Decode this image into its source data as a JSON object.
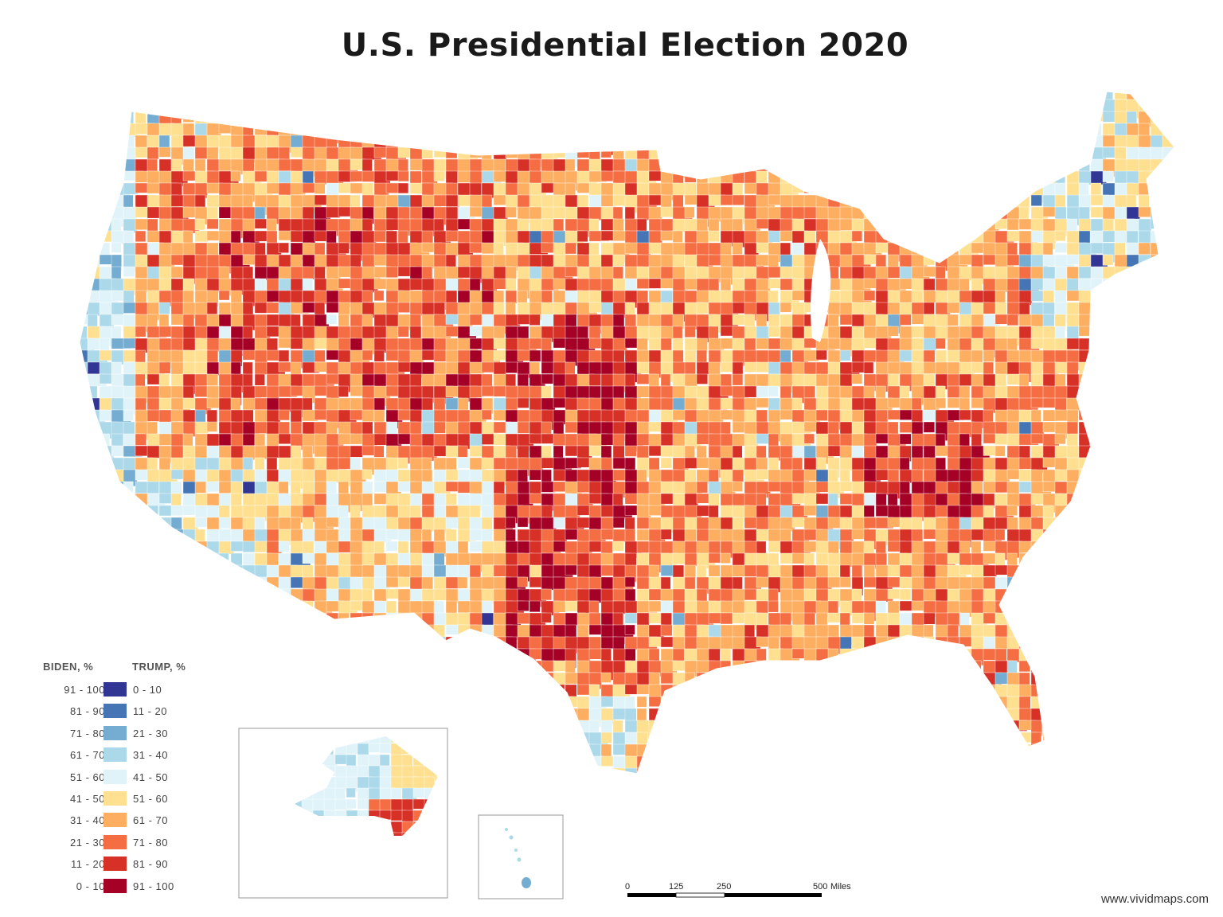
{
  "title": "U.S. Presidential Election 2020",
  "legend": {
    "biden_header": "BIDEN, %",
    "trump_header": "TRUMP, %",
    "rows": [
      {
        "biden": "91 - 100",
        "trump": "0 - 10",
        "color": "#313695"
      },
      {
        "biden": "81 - 90",
        "trump": "11 - 20",
        "color": "#4575b4"
      },
      {
        "biden": "71 - 80",
        "trump": "21 - 30",
        "color": "#74add1"
      },
      {
        "biden": "61 - 70",
        "trump": "31 - 40",
        "color": "#abd9e9"
      },
      {
        "biden": "51 - 60",
        "trump": "41 - 50",
        "color": "#e0f3f8"
      },
      {
        "biden": "41 - 50",
        "trump": "51 - 60",
        "color": "#fee090"
      },
      {
        "biden": "31 - 40",
        "trump": "61 - 70",
        "color": "#fdae61"
      },
      {
        "biden": "21 - 30",
        "trump": "71 - 80",
        "color": "#f46d43"
      },
      {
        "biden": "11 - 20",
        "trump": "81 - 90",
        "color": "#d73027"
      },
      {
        "biden": "0 - 10",
        "trump": "91 - 100",
        "color": "#a50026"
      }
    ]
  },
  "scale_bar": {
    "ticks": [
      "0",
      "125",
      "250",
      "500"
    ],
    "unit": "Miles"
  },
  "credit": "www.vividmaps.com"
}
